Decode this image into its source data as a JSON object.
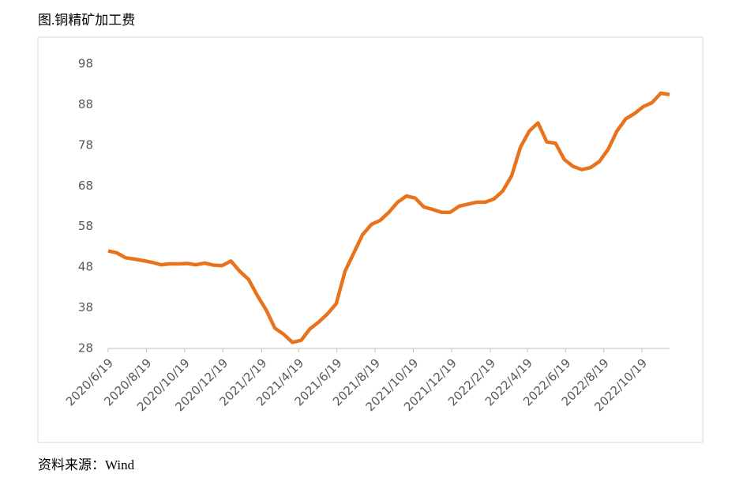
{
  "chart_data": {
    "type": "line",
    "title": "图.铜精矿加工费",
    "source": "资料来源：Wind",
    "x": [
      "2020/6/19",
      "2020/7/3",
      "2020/7/17",
      "2020/7/31",
      "2020/8/14",
      "2020/8/28",
      "2020/9/11",
      "2020/9/25",
      "2020/10/9",
      "2020/10/23",
      "2020/11/6",
      "2020/11/20",
      "2020/12/4",
      "2020/12/18",
      "2021/1/1",
      "2021/1/15",
      "2021/1/29",
      "2021/2/12",
      "2021/2/26",
      "2021/3/12",
      "2021/3/26",
      "2021/4/9",
      "2021/4/23",
      "2021/5/7",
      "2021/5/21",
      "2021/6/4",
      "2021/6/18",
      "2021/7/2",
      "2021/7/16",
      "2021/7/30",
      "2021/8/13",
      "2021/8/27",
      "2021/9/10",
      "2021/9/24",
      "2021/10/8",
      "2021/10/22",
      "2021/11/5",
      "2021/11/19",
      "2021/12/3",
      "2021/12/17",
      "2021/12/31",
      "2022/1/14",
      "2022/1/28",
      "2022/2/11",
      "2022/2/25",
      "2022/3/11",
      "2022/3/25",
      "2022/4/8",
      "2022/4/22",
      "2022/5/6",
      "2022/5/20",
      "2022/6/3",
      "2022/6/17",
      "2022/7/1",
      "2022/7/15",
      "2022/7/29",
      "2022/8/12",
      "2022/8/26",
      "2022/9/9",
      "2022/9/23",
      "2022/10/7",
      "2022/10/21",
      "2022/11/4",
      "2022/11/18",
      "2022/12/2"
    ],
    "series": [
      {
        "name": "铜精矿加工费",
        "color": "#e8731c",
        "values": [
          52,
          51.5,
          50.3,
          50,
          49.6,
          49.2,
          48.6,
          48.8,
          48.8,
          48.9,
          48.6,
          49,
          48.5,
          48.4,
          49.5,
          47,
          45,
          41,
          37.5,
          33,
          31.5,
          29.5,
          30,
          32.8,
          34.5,
          36.5,
          39,
          47,
          51.5,
          56,
          58.5,
          59.5,
          61.5,
          64,
          65.5,
          65,
          62.8,
          62.2,
          61.5,
          61.5,
          63,
          63.5,
          64,
          64,
          64.8,
          66.8,
          70.5,
          77.5,
          81.5,
          83.5,
          78.8,
          78.5,
          74.5,
          72.8,
          72,
          72.5,
          74,
          77,
          81.5,
          84.5,
          85.8,
          87.5,
          88.5,
          90.8,
          90.5
        ]
      }
    ],
    "xlim": [
      "2020/6/19",
      "2022/12/2"
    ],
    "xticks": [
      "2020/6/19",
      "2020/8/19",
      "2020/10/19",
      "2020/12/19",
      "2021/2/19",
      "2021/4/19",
      "2021/6/19",
      "2021/8/19",
      "2021/10/19",
      "2021/12/19",
      "2022/2/19",
      "2022/4/19",
      "2022/6/19",
      "2022/8/19",
      "2022/10/19"
    ],
    "ylim": [
      28,
      98
    ],
    "yticks": [
      28,
      38,
      48,
      58,
      68,
      78,
      88,
      98
    ],
    "legend": false,
    "grid": false
  }
}
